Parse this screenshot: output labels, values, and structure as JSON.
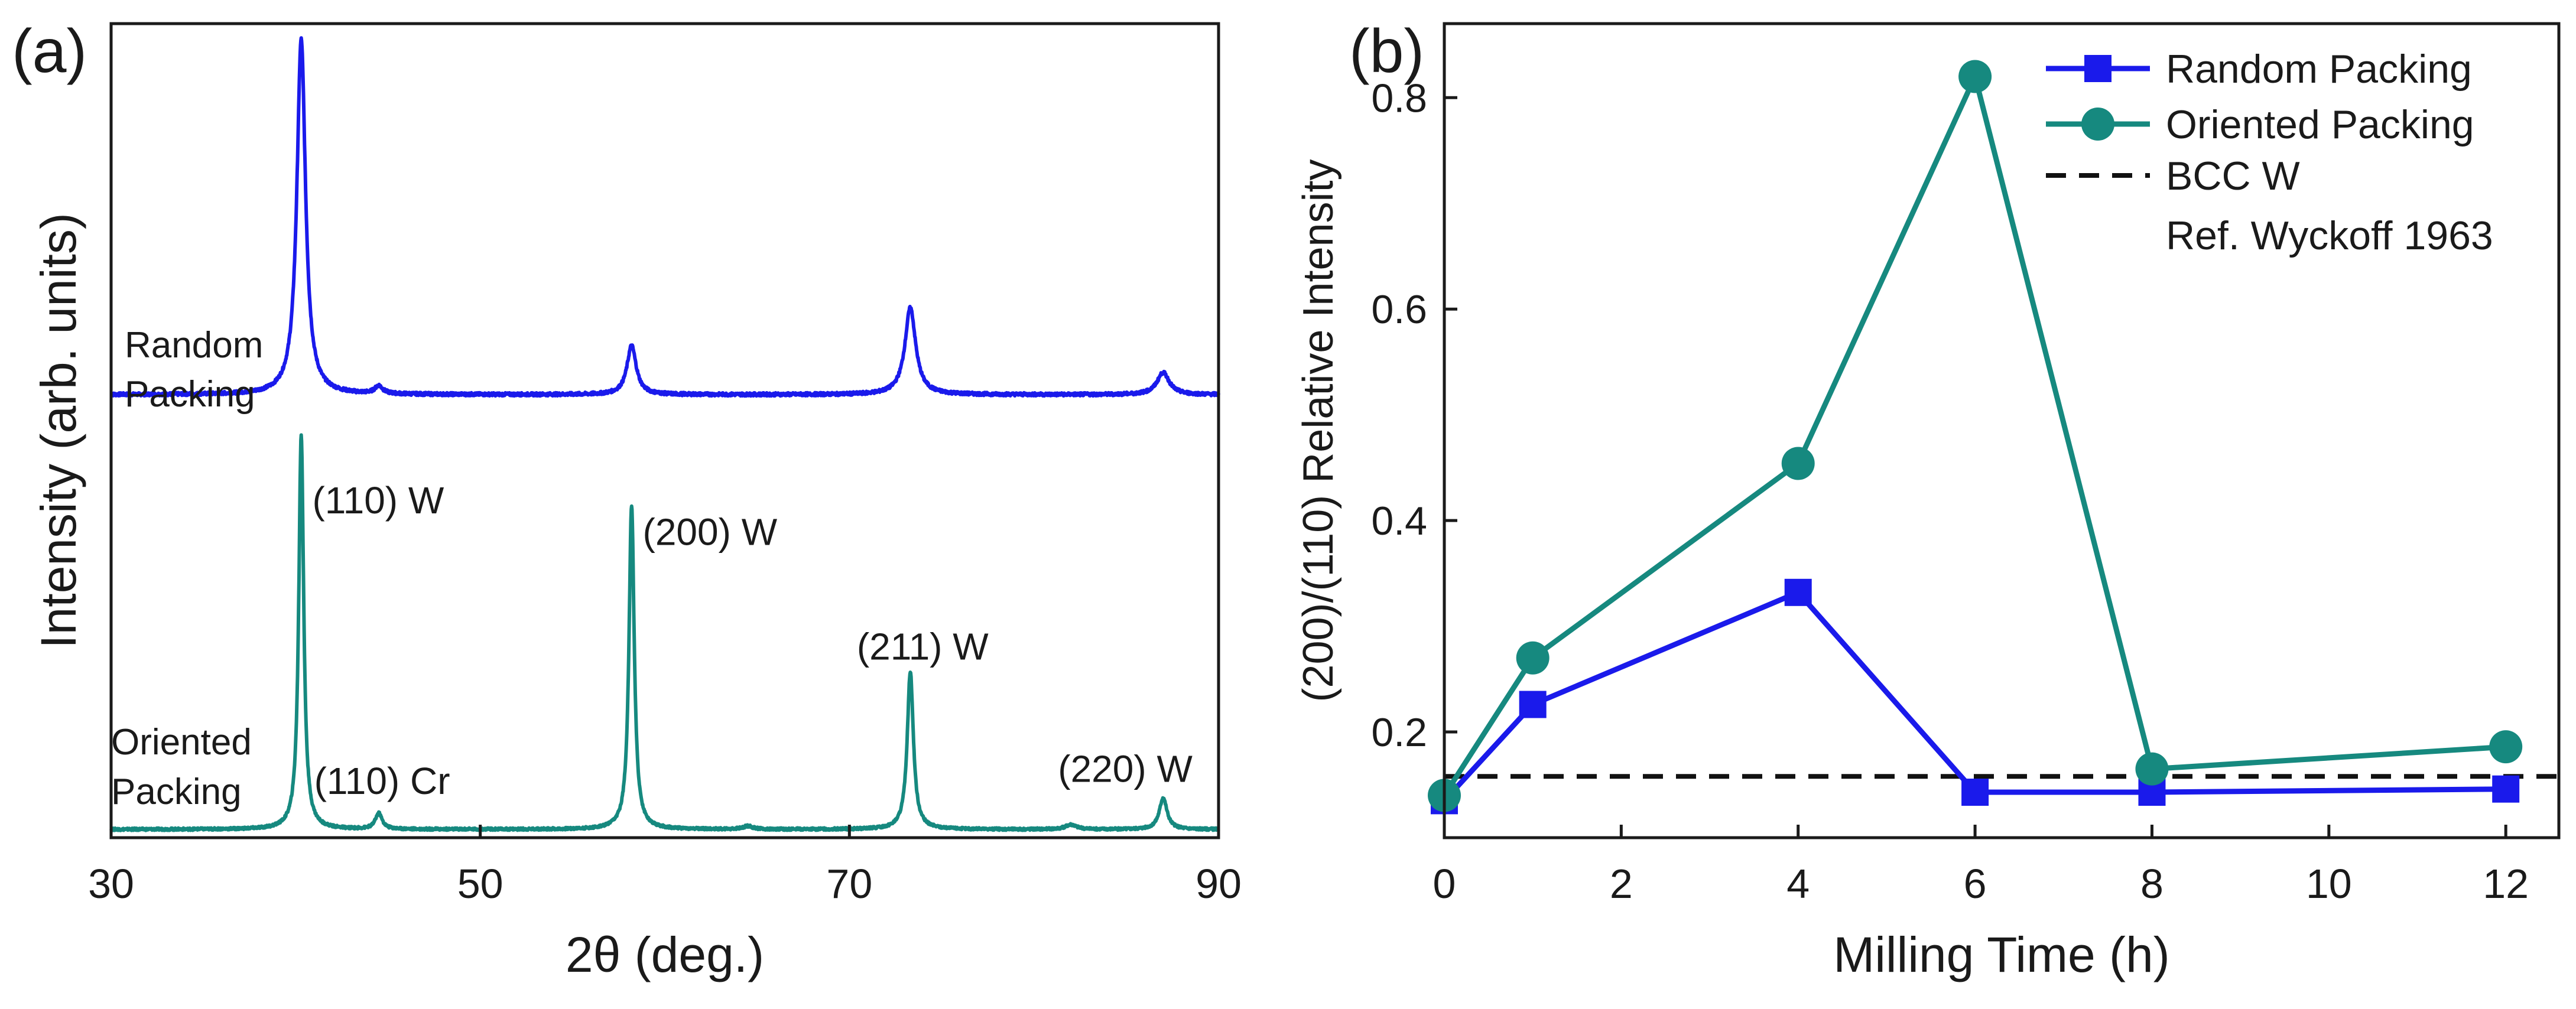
{
  "colors": {
    "random": "#1a1aeb",
    "oriented": "#16897f",
    "reference": "#111111",
    "axis": "#1a1a1a"
  },
  "chart_data": [
    {
      "panel": "(a)",
      "type": "line",
      "xlabel": "2θ (deg.)",
      "ylabel": "Intensity (arb. units)",
      "xlim": [
        30,
        90
      ],
      "xticks": [
        "30",
        "50",
        "70",
        "90"
      ],
      "ylim": [
        0,
        1
      ],
      "y_ticks_shown": false,
      "series": [
        {
          "name": "Random Packing",
          "label_lines": [
            "Random",
            "Packing"
          ],
          "color_key": "random",
          "offset": 0.55,
          "noise": 0.004,
          "peaks": [
            {
              "center": 40.3,
              "height": 0.45,
              "width": 0.28
            },
            {
              "center": 44.5,
              "height": 0.01,
              "width": 0.25
            },
            {
              "center": 58.2,
              "height": 0.062,
              "width": 0.3
            },
            {
              "center": 73.3,
              "height": 0.11,
              "width": 0.35
            },
            {
              "center": 87.0,
              "height": 0.028,
              "width": 0.4
            }
          ]
        },
        {
          "name": "Oriented Packing",
          "label_lines": [
            "Oriented",
            "Packing"
          ],
          "color_key": "oriented",
          "offset": 0.0,
          "noise": 0.003,
          "peaks": [
            {
              "center": 40.3,
              "height": 0.5,
              "width": 0.16
            },
            {
              "center": 44.5,
              "height": 0.02,
              "width": 0.22
            },
            {
              "center": 58.2,
              "height": 0.41,
              "width": 0.17
            },
            {
              "center": 64.5,
              "height": 0.004,
              "width": 0.3
            },
            {
              "center": 73.3,
              "height": 0.2,
              "width": 0.2
            },
            {
              "center": 82.0,
              "height": 0.006,
              "width": 0.35
            },
            {
              "center": 87.0,
              "height": 0.04,
              "width": 0.25
            }
          ]
        }
      ],
      "annotations": [
        {
          "text": "(110) W",
          "x": 40.9,
          "y": 0.4
        },
        {
          "text": "(110) Cr",
          "x": 41.0,
          "y": 0.045
        },
        {
          "text": "(200) W",
          "x": 58.8,
          "y": 0.36
        },
        {
          "text": "(211) W",
          "x": 70.4,
          "y": 0.215
        },
        {
          "text": "(220) W",
          "x": 81.3,
          "y": 0.06
        }
      ]
    },
    {
      "panel": "(b)",
      "type": "line",
      "xlabel": "Milling Time (h)",
      "ylabel": "(200)/(110) Relative Intensity",
      "xlim": [
        0,
        12.6
      ],
      "ylim": [
        0.1,
        0.87
      ],
      "xticks": [
        0,
        2,
        4,
        6,
        8,
        10,
        12
      ],
      "yticks": [
        0.2,
        0.4,
        0.6,
        0.8
      ],
      "ytick_labels": [
        "0.2",
        "0.4",
        "0.6",
        "0.8"
      ],
      "series": [
        {
          "name": "Random Packing",
          "marker": "square",
          "color_key": "random",
          "x": [
            0,
            1,
            4,
            6,
            8,
            12
          ],
          "y": [
            0.135,
            0.226,
            0.332,
            0.143,
            0.143,
            0.146
          ]
        },
        {
          "name": "Oriented Packing",
          "marker": "circle",
          "color_key": "oriented",
          "x": [
            0,
            1,
            4,
            6,
            8,
            12
          ],
          "y": [
            0.14,
            0.27,
            0.454,
            0.82,
            0.165,
            0.186
          ]
        }
      ],
      "reference": {
        "name": "BCC W",
        "note": "Ref. Wyckoff 1963",
        "y": 0.158,
        "style": "dashed"
      },
      "legend": {
        "position": "top-right",
        "items": [
          "Random Packing",
          "Oriented Packing",
          "BCC W"
        ],
        "extra_line": "Ref. Wyckoff 1963"
      }
    }
  ]
}
